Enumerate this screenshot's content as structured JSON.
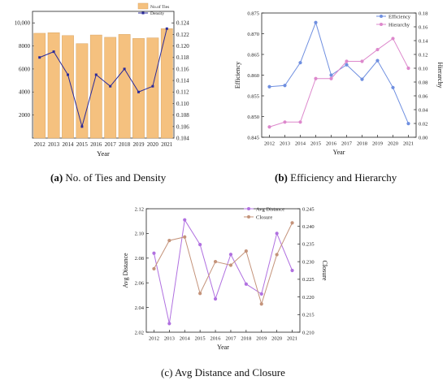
{
  "figure": {
    "captions": [
      {
        "letter": "(a)",
        "text": " No. of Ties and Density"
      },
      {
        "letter": "(b)",
        "text": " Efficiency and Hierarchy"
      },
      {
        "letter": "(c)",
        "text": " Avg Distance and Closure"
      }
    ]
  },
  "chart_data": [
    {
      "type": "bar",
      "title": "",
      "xlabel": "Year",
      "ylabel": "",
      "y2label": "",
      "categories": [
        "2012",
        "2013",
        "2014",
        "2015",
        "2016",
        "2017",
        "2018",
        "2019",
        "2020",
        "2021"
      ],
      "ylim": [
        0,
        11000
      ],
      "y_ticks": [
        2000,
        4000,
        6000,
        8000,
        10000
      ],
      "y_tick_labels": [
        "2000",
        "4000",
        "6000",
        "8000",
        "10,000"
      ],
      "y2lim": [
        0.104,
        0.126
      ],
      "y2_ticks": [
        0.104,
        0.106,
        0.108,
        0.11,
        0.112,
        0.114,
        0.116,
        0.118,
        0.12,
        0.122,
        0.124
      ],
      "legend_position": "top-right",
      "grid": false,
      "series": [
        {
          "name": "No.of Ties",
          "kind": "bar",
          "axis": "left",
          "color": "#f5c17f",
          "values": [
            9100,
            9150,
            8900,
            8200,
            8950,
            8750,
            9000,
            8650,
            8700,
            9500
          ]
        },
        {
          "name": "Density",
          "kind": "line",
          "axis": "right",
          "color": "#2a2a9a",
          "values": [
            0.118,
            0.119,
            0.115,
            0.106,
            0.115,
            0.113,
            0.116,
            0.112,
            0.113,
            0.123
          ]
        }
      ]
    },
    {
      "type": "line",
      "title": "",
      "xlabel": "Year",
      "ylabel": "Efficiency",
      "y2label": "Hierarchy",
      "categories": [
        "2012",
        "2013",
        "2014",
        "2015",
        "2016",
        "2017",
        "2018",
        "2019",
        "2020",
        "2021"
      ],
      "ylim": [
        0.845,
        0.875
      ],
      "y_ticks": [
        0.845,
        0.85,
        0.855,
        0.86,
        0.865,
        0.87,
        0.875
      ],
      "y2lim": [
        0,
        0.18
      ],
      "y2_ticks": [
        0.0,
        0.02,
        0.04,
        0.06,
        0.08,
        0.1,
        0.12,
        0.14,
        0.16,
        0.18
      ],
      "legend_position": "top-right",
      "grid": false,
      "series": [
        {
          "name": "Efficiency",
          "axis": "left",
          "color": "#6f8fe0",
          "values": [
            0.8572,
            0.8575,
            0.863,
            0.8727,
            0.86,
            0.8625,
            0.859,
            0.8635,
            0.857,
            0.8483
          ]
        },
        {
          "name": "Hierarchy",
          "axis": "right",
          "color": "#dd88cc",
          "values": [
            0.015,
            0.022,
            0.022,
            0.085,
            0.085,
            0.11,
            0.11,
            0.127,
            0.143,
            0.1
          ]
        }
      ]
    },
    {
      "type": "line",
      "title": "",
      "xlabel": "Year",
      "ylabel": "Avg Distance",
      "y2label": "Closure",
      "categories": [
        "2012",
        "2013",
        "2014",
        "2015",
        "2016",
        "2017",
        "2018",
        "2019",
        "2020",
        "2021"
      ],
      "ylim": [
        2.02,
        2.12
      ],
      "y_ticks": [
        2.02,
        2.04,
        2.06,
        2.08,
        2.1,
        2.12
      ],
      "y2lim": [
        0.21,
        0.245
      ],
      "y2_ticks": [
        0.21,
        0.215,
        0.22,
        0.225,
        0.23,
        0.235,
        0.24,
        0.245
      ],
      "legend_position": "top-right",
      "grid": false,
      "series": [
        {
          "name": "Avg Distance",
          "axis": "left",
          "color": "#b070e0",
          "values": [
            2.084,
            2.027,
            2.111,
            2.091,
            2.047,
            2.083,
            2.059,
            2.051,
            2.1,
            2.07
          ]
        },
        {
          "name": "Closure",
          "axis": "right",
          "color": "#c4937a",
          "values": [
            0.228,
            0.236,
            0.237,
            0.221,
            0.23,
            0.229,
            0.233,
            0.218,
            0.232,
            0.241
          ]
        }
      ]
    }
  ]
}
